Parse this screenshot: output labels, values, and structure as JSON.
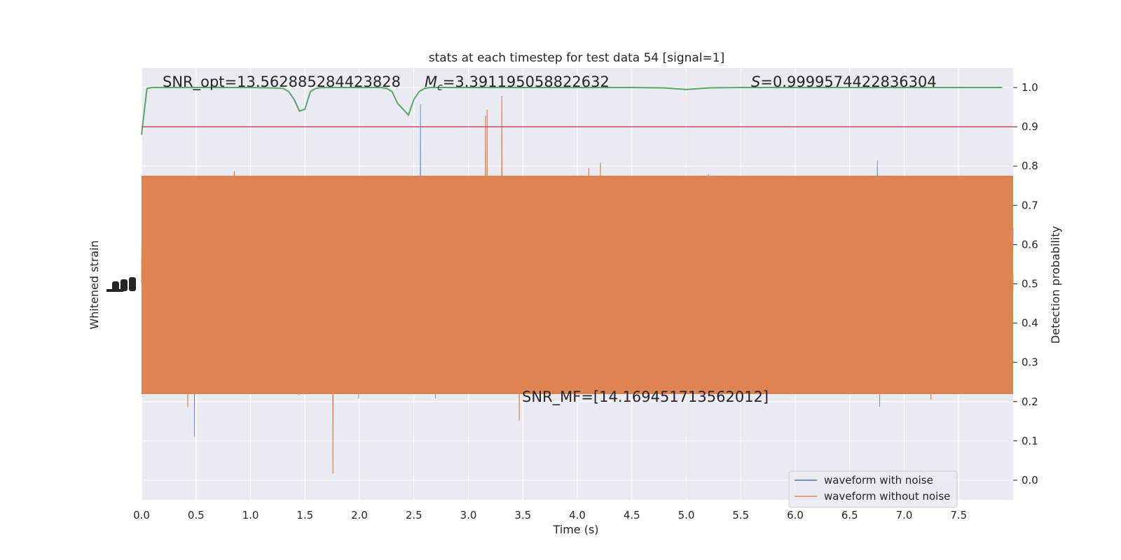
{
  "chart_data": {
    "type": "line",
    "title": "stats at each timestep for test data 54 [signal=1]",
    "xlabel": "Time (s)",
    "ylabel_left": "Whitened strain",
    "ylabel_right": "Detection probability",
    "xlim": [
      0.0,
      8.0
    ],
    "ylim_right": [
      -0.05,
      1.05
    ],
    "xticks": [
      "0.0",
      "0.5",
      "1.0",
      "1.5",
      "2.0",
      "2.5",
      "3.0",
      "3.5",
      "4.0",
      "4.5",
      "5.0",
      "5.5",
      "6.0",
      "6.5",
      "7.0",
      "7.5"
    ],
    "yticks_right": [
      "0.0",
      "0.1",
      "0.2",
      "0.3",
      "0.4",
      "0.5",
      "0.6",
      "0.7",
      "0.8",
      "0.9",
      "1.0"
    ],
    "grid": true,
    "legend_position": "lower-right",
    "annotations": {
      "snr_opt": "SNR_opt=13.562885284423828",
      "mc_symbol": "M",
      "mc_sub": "c",
      "mc_value": "=3.391195058822632",
      "s_symbol": "S",
      "s_value": "=0.9999574422836304",
      "snr_mf": "SNR_MF=[14.169451713562012]"
    },
    "threshold": 0.9,
    "series": [
      {
        "name": "waveform with noise",
        "color": "#4c72b0",
        "kind": "strain"
      },
      {
        "name": "waveform without noise",
        "color": "#dd8452",
        "kind": "strain"
      },
      {
        "color": "#55a868",
        "kind": "probability",
        "x": [
          0.0,
          0.05,
          0.1,
          0.5,
          1.0,
          1.2,
          1.3,
          1.35,
          1.4,
          1.45,
          1.5,
          1.55,
          1.6,
          1.65,
          1.7,
          2.0,
          2.2,
          2.25,
          2.3,
          2.35,
          2.4,
          2.45,
          2.5,
          2.55,
          2.6,
          2.65,
          2.7,
          3.0,
          4.0,
          4.5,
          4.8,
          4.9,
          5.0,
          5.1,
          5.2,
          5.5,
          6.0,
          7.0,
          7.9
        ],
        "y": [
          0.88,
          0.998,
          1.0,
          1.0,
          1.0,
          0.999,
          0.998,
          0.99,
          0.97,
          0.94,
          0.945,
          0.99,
          0.998,
          1.0,
          1.0,
          1.0,
          1.0,
          0.998,
          0.99,
          0.96,
          0.945,
          0.93,
          0.97,
          0.99,
          0.998,
          1.0,
          1.0,
          1.0,
          1.0,
          1.0,
          0.999,
          0.997,
          0.995,
          0.997,
          0.999,
          1.0,
          1.0,
          1.0,
          1.0
        ]
      },
      {
        "color": "#c44e52",
        "kind": "threshold"
      }
    ]
  }
}
